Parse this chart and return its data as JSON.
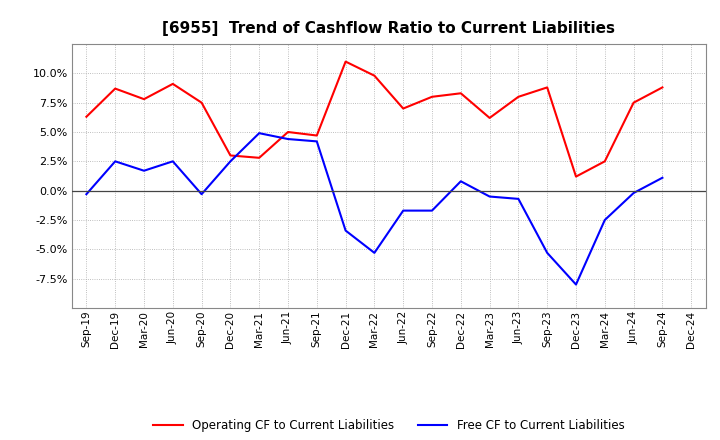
{
  "title": "[6955]  Trend of Cashflow Ratio to Current Liabilities",
  "x_labels": [
    "Sep-19",
    "Dec-19",
    "Mar-20",
    "Jun-20",
    "Sep-20",
    "Dec-20",
    "Mar-21",
    "Jun-21",
    "Sep-21",
    "Dec-21",
    "Mar-22",
    "Jun-22",
    "Sep-22",
    "Dec-22",
    "Mar-23",
    "Jun-23",
    "Sep-23",
    "Dec-23",
    "Mar-24",
    "Jun-24",
    "Sep-24",
    "Dec-24"
  ],
  "operating_cf": [
    6.3,
    8.7,
    7.8,
    9.1,
    7.5,
    3.0,
    2.8,
    5.0,
    4.7,
    11.0,
    9.8,
    7.0,
    8.0,
    8.3,
    6.2,
    8.0,
    8.8,
    1.2,
    2.5,
    7.5,
    8.8,
    null
  ],
  "free_cf": [
    -0.3,
    2.5,
    1.7,
    2.5,
    -0.3,
    2.5,
    4.9,
    4.4,
    4.2,
    -3.4,
    -5.3,
    -1.7,
    -1.7,
    0.8,
    -0.5,
    -0.7,
    -5.3,
    -8.0,
    -2.5,
    -0.2,
    1.1,
    null
  ],
  "operating_color": "#FF0000",
  "free_color": "#0000FF",
  "background_color": "#FFFFFF",
  "grid_color": "#AAAAAA",
  "ylim": [
    -10.0,
    12.5
  ],
  "yticks": [
    -7.5,
    -5.0,
    -2.5,
    0.0,
    2.5,
    5.0,
    7.5,
    10.0
  ],
  "legend_op": "Operating CF to Current Liabilities",
  "legend_free": "Free CF to Current Liabilities",
  "title_fontsize": 11,
  "tick_fontsize": 8,
  "legend_fontsize": 8.5
}
